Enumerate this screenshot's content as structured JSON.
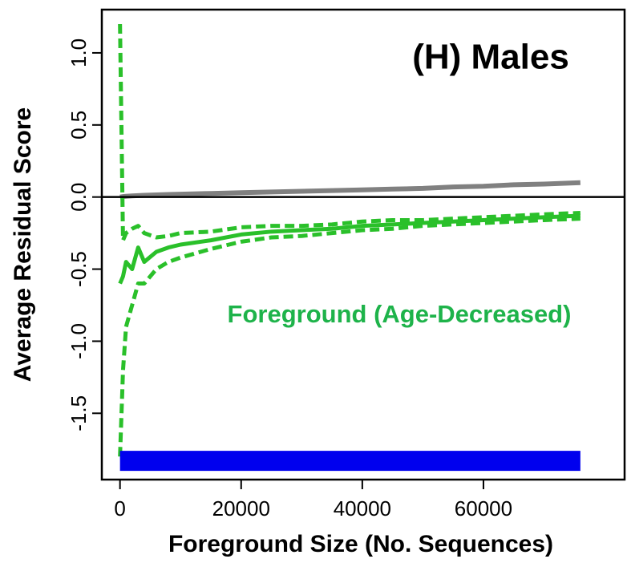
{
  "chart_data": {
    "type": "line",
    "title": "(H) Males",
    "annotation": "Foreground (Age-Decreased)",
    "annotation_color": "#1eb34a",
    "x_label": "Foreground Size (No. Sequences)",
    "y_label": "Average Residual Score",
    "x": [
      0,
      500,
      1000,
      2000,
      3000,
      4000,
      6000,
      8000,
      10000,
      15000,
      20000,
      25000,
      30000,
      35000,
      40000,
      45000,
      50000,
      55000,
      60000,
      65000,
      70000,
      76000
    ],
    "series": [
      {
        "color": "#808080",
        "width": 6,
        "dashed": false,
        "values": [
          0,
          0.003,
          0.005,
          0.008,
          0.01,
          0.012,
          0.015,
          0.018,
          0.02,
          0.025,
          0.03,
          0.035,
          0.04,
          0.045,
          0.05,
          0.055,
          0.06,
          0.07,
          0.075,
          0.085,
          0.09,
          0.1
        ]
      },
      {
        "color": "#2ac02a",
        "width": 5,
        "dashed": false,
        "values": [
          -0.6,
          -0.55,
          -0.45,
          -0.5,
          -0.35,
          -0.45,
          -0.38,
          -0.35,
          -0.33,
          -0.3,
          -0.26,
          -0.24,
          -0.23,
          -0.22,
          -0.2,
          -0.19,
          -0.18,
          -0.17,
          -0.16,
          -0.15,
          -0.14,
          -0.13
        ]
      },
      {
        "color": "#2ac02a",
        "width": 5,
        "dashed": true,
        "values": [
          1.2,
          -0.3,
          -0.25,
          -0.22,
          -0.2,
          -0.25,
          -0.28,
          -0.27,
          -0.25,
          -0.24,
          -0.21,
          -0.2,
          -0.2,
          -0.19,
          -0.17,
          -0.16,
          -0.16,
          -0.15,
          -0.14,
          -0.13,
          -0.12,
          -0.11
        ]
      },
      {
        "color": "#2ac02a",
        "width": 5,
        "dashed": true,
        "values": [
          -1.8,
          -1.2,
          -0.9,
          -0.75,
          -0.6,
          -0.6,
          -0.5,
          -0.45,
          -0.42,
          -0.36,
          -0.31,
          -0.28,
          -0.27,
          -0.25,
          -0.23,
          -0.22,
          -0.2,
          -0.19,
          -0.18,
          -0.17,
          -0.16,
          -0.15
        ]
      },
      {
        "color": "#0000ee",
        "width": 25,
        "dashed": false,
        "values": [
          -1.83,
          -1.83,
          -1.83,
          -1.83,
          -1.83,
          -1.83,
          -1.83,
          -1.83,
          -1.83,
          -1.83,
          -1.83,
          -1.83,
          -1.83,
          -1.83,
          -1.83,
          -1.83,
          -1.83,
          -1.83,
          -1.83,
          -1.83,
          -1.83,
          -1.83
        ]
      }
    ],
    "hlines": [
      0
    ],
    "xlim": [
      -3000,
      83300
    ],
    "ylim": [
      -1.96,
      1.3
    ],
    "xticks": [
      0,
      20000,
      40000,
      60000
    ],
    "yticks": [
      -1.5,
      {
        "value": -1,
        "label": "-1.0"
      },
      -0.5,
      {
        "value": 0,
        "label": "0.0"
      },
      0.5,
      {
        "value": 1,
        "label": "1.0"
      }
    ],
    "grid": false
  }
}
